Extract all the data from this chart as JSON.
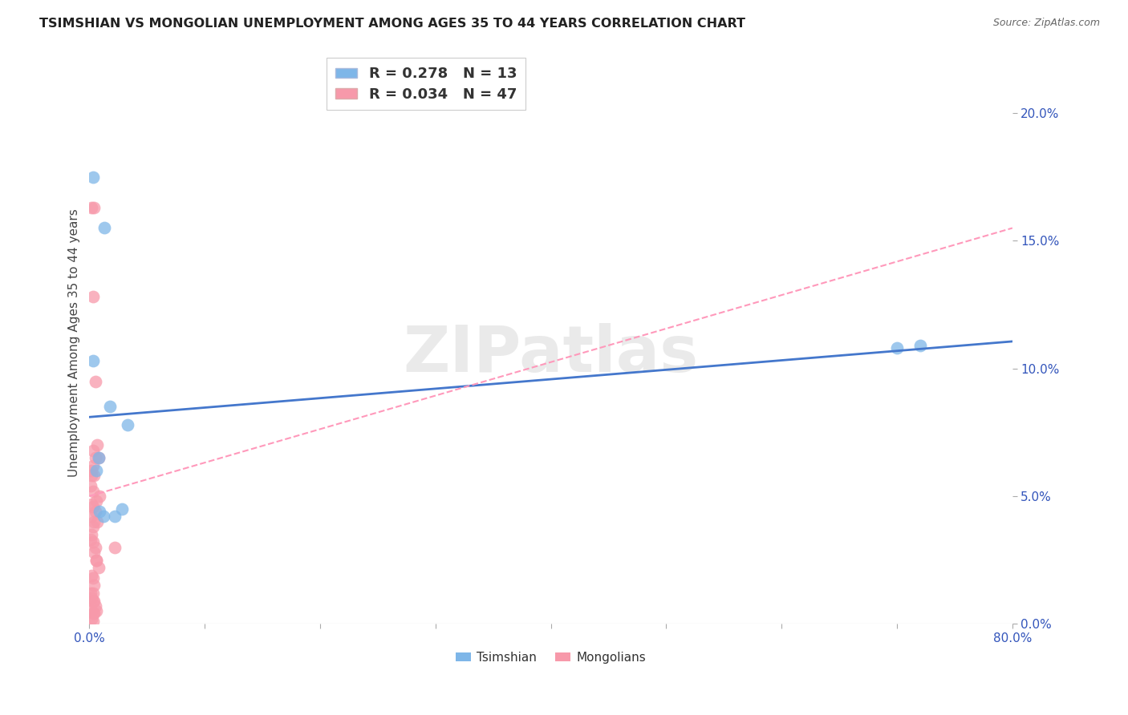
{
  "title": "TSIMSHIAN VS MONGOLIAN UNEMPLOYMENT AMONG AGES 35 TO 44 YEARS CORRELATION CHART",
  "source": "Source: ZipAtlas.com",
  "ylabel": "Unemployment Among Ages 35 to 44 years",
  "watermark": "ZIPatlas",
  "xlim": [
    0.0,
    0.8
  ],
  "ylim": [
    0.0,
    0.22
  ],
  "xticks": [
    0.0,
    0.1,
    0.2,
    0.3,
    0.4,
    0.5,
    0.6,
    0.7,
    0.8
  ],
  "xticklabels": [
    "0.0%",
    "",
    "",
    "",
    "",
    "",
    "",
    "",
    "80.0%"
  ],
  "yticks": [
    0.0,
    0.05,
    0.1,
    0.15,
    0.2
  ],
  "yticklabels": [
    "0.0%",
    "5.0%",
    "10.0%",
    "15.0%",
    "20.0%"
  ],
  "tsimshian_color": "#7EB6E8",
  "mongolian_color": "#F799AA",
  "tsimshian_R": 0.278,
  "tsimshian_N": 13,
  "mongolian_R": 0.034,
  "mongolian_N": 47,
  "trend_blue_color": "#4477CC",
  "trend_pink_color": "#FF99BB",
  "tsimshian_x": [
    0.003,
    0.013,
    0.003,
    0.006,
    0.009,
    0.012,
    0.022,
    0.033,
    0.7,
    0.72,
    0.018,
    0.008,
    0.028
  ],
  "tsimshian_y": [
    0.175,
    0.155,
    0.103,
    0.06,
    0.044,
    0.042,
    0.042,
    0.078,
    0.108,
    0.109,
    0.085,
    0.065,
    0.045
  ],
  "mongolian_x": [
    0.002,
    0.004,
    0.003,
    0.005,
    0.002,
    0.003,
    0.005,
    0.008,
    0.003,
    0.002,
    0.004,
    0.001,
    0.003,
    0.006,
    0.009,
    0.002,
    0.003,
    0.005,
    0.007,
    0.002,
    0.004,
    0.003,
    0.001,
    0.002,
    0.003,
    0.005,
    0.004,
    0.006,
    0.008,
    0.002,
    0.003,
    0.004,
    0.001,
    0.003,
    0.002,
    0.004,
    0.003,
    0.005,
    0.002,
    0.006,
    0.003,
    0.004,
    0.002,
    0.003,
    0.007,
    0.006,
    0.022
  ],
  "mongolian_y": [
    0.163,
    0.163,
    0.128,
    0.095,
    0.06,
    0.068,
    0.065,
    0.065,
    0.062,
    0.058,
    0.058,
    0.054,
    0.052,
    0.048,
    0.05,
    0.047,
    0.046,
    0.044,
    0.04,
    0.042,
    0.04,
    0.038,
    0.033,
    0.035,
    0.032,
    0.03,
    0.028,
    0.025,
    0.022,
    0.019,
    0.018,
    0.015,
    0.012,
    0.012,
    0.01,
    0.009,
    0.009,
    0.007,
    0.005,
    0.005,
    0.004,
    0.004,
    0.002,
    0.001,
    0.07,
    0.025,
    0.03
  ],
  "background_color": "#FFFFFF",
  "grid_color": "#DDDDDD",
  "tick_color": "#3355BB",
  "title_color": "#222222",
  "legend_text_color": "#333333"
}
